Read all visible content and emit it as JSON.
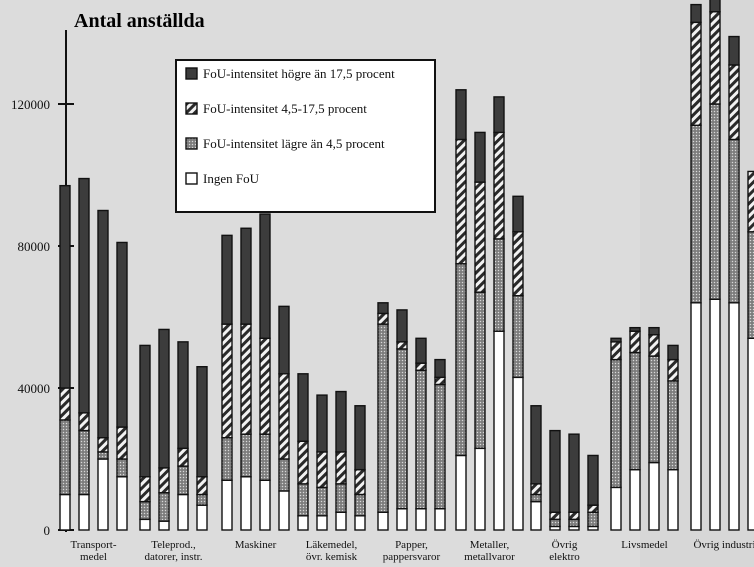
{
  "chart_data": {
    "type": "bar",
    "stacked": true,
    "title": "Antal anställda",
    "xlabel": "",
    "ylabel": "",
    "ylim": [
      0,
      130000
    ],
    "yticks": [
      0,
      40000,
      80000,
      120000
    ],
    "ytick_labels": [
      "0",
      "40000",
      "80000",
      "120000"
    ],
    "grid": false,
    "legend_position": "top-center",
    "categories": [
      "Transport-\nmedel",
      "Teleprod.,\ndatorer, instr.",
      "Maskiner",
      "Läkemedel,\növr. kemisk",
      "Papper,\npappersvaror",
      "Metaller,\nmetallvaror",
      "Övrig\nelektro",
      "Livsmedel",
      "Övrig industri"
    ],
    "bars_per_category": 4,
    "series": [
      {
        "name": "Ingen FoU",
        "color": "#ffffff",
        "pattern": "none",
        "values": [
          [
            10000,
            10000,
            20000,
            15000
          ],
          [
            3000,
            2500,
            10000,
            7000
          ],
          [
            14000,
            15000,
            14000,
            11000
          ],
          [
            4000,
            4000,
            5000,
            4000
          ],
          [
            5000,
            6000,
            6000,
            6000
          ],
          [
            21000,
            23000,
            56000,
            43000
          ],
          [
            8000,
            1000,
            1000,
            1000
          ],
          [
            12000,
            17000,
            19000,
            17000
          ],
          [
            64000,
            65000,
            64000,
            54000
          ]
        ]
      },
      {
        "name": "FoU-intensitet lägre än 4,5 procent",
        "color": "#8a8a8a",
        "pattern": "dots",
        "values": [
          [
            21000,
            18000,
            2000,
            5000
          ],
          [
            5000,
            8000,
            8000,
            3000
          ],
          [
            12000,
            12000,
            13000,
            9000
          ],
          [
            9000,
            8000,
            8000,
            6000
          ],
          [
            53000,
            45000,
            39000,
            35000
          ],
          [
            54000,
            44000,
            26000,
            23000
          ],
          [
            2000,
            2000,
            2000,
            4000
          ],
          [
            36000,
            33000,
            30000,
            25000
          ],
          [
            50000,
            55000,
            46000,
            30000
          ]
        ]
      },
      {
        "name": "FoU-intensitet 4,5-17,5 procent",
        "color": "#aaaaaa",
        "pattern": "hatch",
        "values": [
          [
            9000,
            5000,
            4000,
            9000
          ],
          [
            7000,
            7000,
            5000,
            5000
          ],
          [
            32000,
            31000,
            27000,
            24000
          ],
          [
            12000,
            10000,
            9000,
            7000
          ],
          [
            3000,
            2000,
            2000,
            2000
          ],
          [
            35000,
            31000,
            30000,
            18000
          ],
          [
            3000,
            2000,
            2000,
            2000
          ],
          [
            5000,
            6000,
            6000,
            6000
          ],
          [
            29000,
            26000,
            21000,
            17000
          ]
        ]
      },
      {
        "name": "FoU-intensitet högre än 17,5 procent",
        "color": "#3c3c3c",
        "pattern": "solid",
        "values": [
          [
            57000,
            66000,
            64000,
            52000
          ],
          [
            37000,
            39000,
            30000,
            31000
          ],
          [
            25000,
            27000,
            35000,
            19000
          ],
          [
            19000,
            16000,
            17000,
            18000
          ],
          [
            3000,
            9000,
            7000,
            5000
          ],
          [
            14000,
            14000,
            10000,
            10000
          ],
          [
            22000,
            23000,
            22000,
            14000
          ],
          [
            1000,
            1000,
            2000,
            4000
          ],
          [
            5000,
            4000,
            8000,
            0
          ]
        ]
      }
    ]
  }
}
